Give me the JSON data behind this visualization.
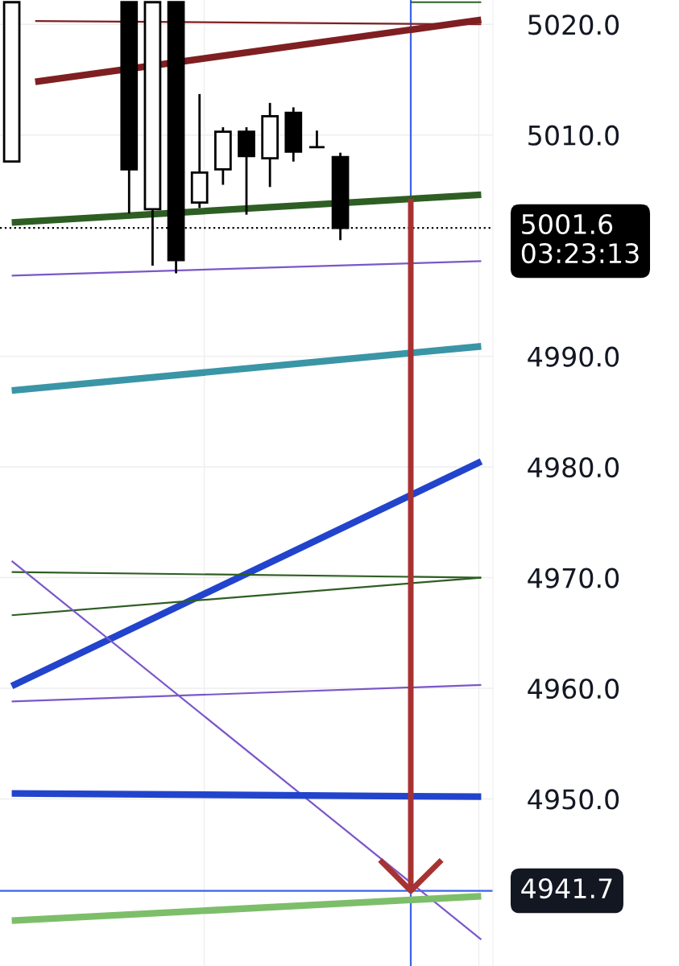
{
  "chart_data": {
    "type": "candlestick",
    "categories": [
      null,
      null,
      null,
      null,
      null,
      null,
      null,
      null,
      null,
      null,
      null,
      null,
      null,
      null,
      null,
      null,
      null,
      null,
      null,
      null,
      null
    ],
    "ohlc": [
      [
        5007.6,
        5022.0,
        5007.6,
        5022.0
      ],
      null,
      null,
      null,
      null,
      [
        5022.0,
        5022.0,
        5002.9,
        5006.9
      ],
      [
        5003.3,
        5022.0,
        4998.2,
        5022.0
      ],
      [
        5022.0,
        5022.0,
        4997.5,
        4998.7
      ],
      [
        5003.9,
        5013.7,
        5003.4,
        5006.6
      ],
      [
        5006.9,
        5010.7,
        5005.5,
        5010.3
      ],
      [
        5010.3,
        5010.7,
        5002.8,
        5008.1
      ],
      [
        5007.9,
        5012.9,
        5005.3,
        5011.7
      ],
      [
        5012.0,
        5012.5,
        5007.6,
        5008.5
      ],
      [
        5008.9,
        5010.4,
        5008.9,
        5008.9
      ],
      [
        5008.0,
        5008.4,
        5000.5,
        5001.6
      ],
      null,
      null,
      null,
      null,
      null,
      null
    ],
    "series": [
      {
        "type": "line",
        "color": "#7f1f22",
        "values": [
          null,
          5020.3,
          null,
          null,
          null,
          null,
          null,
          null,
          null,
          null,
          null,
          null,
          null,
          null,
          null,
          null,
          null,
          null,
          null,
          null,
          5020.0
        ]
      },
      {
        "type": "line",
        "color": "#7f1f22",
        "values": [
          null,
          5014.8,
          null,
          null,
          null,
          null,
          null,
          null,
          null,
          null,
          null,
          null,
          null,
          null,
          null,
          null,
          null,
          null,
          null,
          null,
          5020.4
        ]
      },
      {
        "type": "line",
        "color": "#2e5e23",
        "values": [
          null,
          null,
          null,
          null,
          null,
          null,
          null,
          null,
          null,
          null,
          null,
          null,
          null,
          null,
          null,
          null,
          null,
          5022.0,
          null,
          null,
          5022.0
        ]
      },
      {
        "type": "line",
        "color": "#2e5e23",
        "values": [
          5002.1,
          null,
          null,
          null,
          null,
          null,
          null,
          null,
          null,
          null,
          null,
          null,
          null,
          null,
          null,
          null,
          null,
          null,
          null,
          null,
          5004.6
        ]
      },
      {
        "type": "line",
        "color": "#7b57c9",
        "values": [
          4997.3,
          null,
          null,
          null,
          null,
          null,
          null,
          null,
          null,
          null,
          null,
          null,
          null,
          null,
          null,
          null,
          null,
          null,
          null,
          null,
          4998.6
        ]
      },
      {
        "type": "line",
        "color": "#3a95a6",
        "values": [
          4986.9,
          null,
          null,
          null,
          null,
          null,
          null,
          null,
          null,
          null,
          null,
          null,
          null,
          null,
          null,
          null,
          null,
          null,
          null,
          null,
          4990.9
        ]
      },
      {
        "type": "line",
        "color": "#2244cc",
        "values": [
          4960.2,
          null,
          null,
          null,
          null,
          null,
          null,
          null,
          null,
          null,
          null,
          null,
          null,
          null,
          null,
          null,
          null,
          null,
          null,
          null,
          4980.5
        ]
      },
      {
        "type": "line",
        "color": "#2e5e23",
        "values": [
          4970.5,
          null,
          null,
          null,
          null,
          null,
          null,
          null,
          null,
          null,
          null,
          null,
          null,
          null,
          null,
          null,
          null,
          null,
          null,
          null,
          4970.0
        ]
      },
      {
        "type": "line",
        "color": "#2e5e23",
        "values": [
          4966.6,
          null,
          null,
          null,
          null,
          null,
          null,
          null,
          null,
          null,
          null,
          null,
          null,
          null,
          null,
          null,
          null,
          null,
          null,
          null,
          4970.0
        ]
      },
      {
        "type": "line",
        "color": "#7b57c9",
        "values": [
          4971.5,
          null,
          null,
          null,
          null,
          null,
          null,
          null,
          null,
          null,
          null,
          null,
          null,
          null,
          null,
          null,
          null,
          null,
          null,
          null,
          4937.3
        ]
      },
      {
        "type": "line",
        "color": "#7b57c9",
        "values": [
          4958.8,
          null,
          null,
          null,
          null,
          null,
          null,
          null,
          null,
          null,
          null,
          null,
          null,
          null,
          null,
          null,
          null,
          null,
          null,
          null,
          4960.3
        ]
      },
      {
        "type": "line",
        "color": "#2244cc",
        "values": [
          4950.5,
          null,
          null,
          null,
          null,
          null,
          null,
          null,
          null,
          null,
          null,
          null,
          null,
          null,
          null,
          null,
          null,
          null,
          null,
          null,
          4950.2
        ]
      },
      {
        "type": "line",
        "color": "#7dbe6a",
        "values": [
          4939.0,
          null,
          null,
          null,
          null,
          null,
          null,
          null,
          null,
          null,
          null,
          null,
          null,
          null,
          null,
          null,
          null,
          null,
          null,
          null,
          4941.2
        ]
      }
    ],
    "ref_lines": [
      {
        "axis": "y",
        "value": 5001.6,
        "label": "5001.6",
        "color": "#000000",
        "line_style": "dotted"
      },
      {
        "axis": "y",
        "value": 4941.7,
        "label": "4941.7",
        "color": "#3b63e8",
        "line_style": "solid"
      }
    ],
    "annotations": [
      "03:23:13"
    ],
    "ylim": [
      4934.9,
      5022.2
    ],
    "yticks": [
      {
        "value": 4950,
        "label": "4950.0"
      },
      {
        "value": 4960,
        "label": "4960.0"
      },
      {
        "value": 4970,
        "label": "4970.0"
      },
      {
        "value": 4980,
        "label": "4980.0"
      },
      {
        "value": 4990,
        "label": "4990.0"
      },
      {
        "value": 5010,
        "label": "5010.0"
      },
      {
        "value": 5020,
        "label": "5020.0"
      }
    ],
    "grid": true
  }
}
